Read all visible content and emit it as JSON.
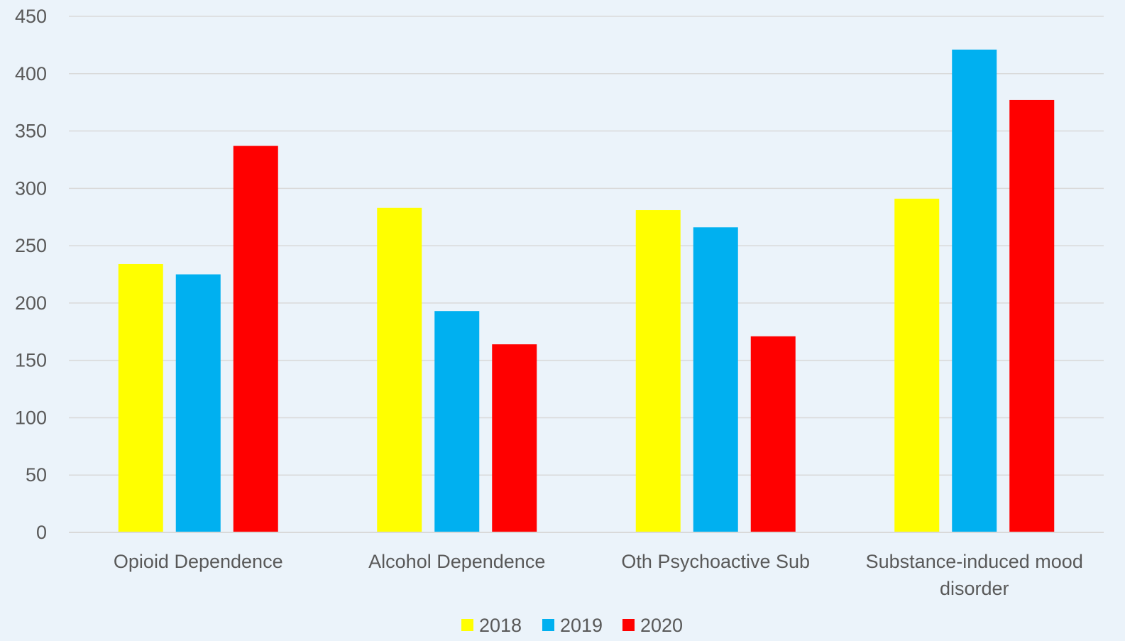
{
  "chart_data": {
    "type": "bar",
    "title": "",
    "xlabel": "",
    "ylabel": "",
    "ylim": [
      0,
      450
    ],
    "yticks": [
      0,
      50,
      100,
      150,
      200,
      250,
      300,
      350,
      400,
      450
    ],
    "grid": true,
    "legend_position": "bottom",
    "categories": [
      [
        "Opioid Dependence"
      ],
      [
        "Alcohol Dependence"
      ],
      [
        "Oth Psychoactive Sub"
      ],
      [
        "Substance-induced mood",
        "disorder"
      ]
    ],
    "series": [
      {
        "name": "2018",
        "color": "#ffff00",
        "values": [
          234,
          283,
          281,
          291
        ]
      },
      {
        "name": "2019",
        "color": "#00b0f0",
        "values": [
          225,
          193,
          266,
          421
        ]
      },
      {
        "name": "2020",
        "color": "#ff0000",
        "values": [
          337,
          164,
          171,
          377
        ]
      }
    ],
    "colors": {
      "background": "#ebf3fa",
      "gridline": "#d9d9d9",
      "text": "#595959"
    }
  }
}
